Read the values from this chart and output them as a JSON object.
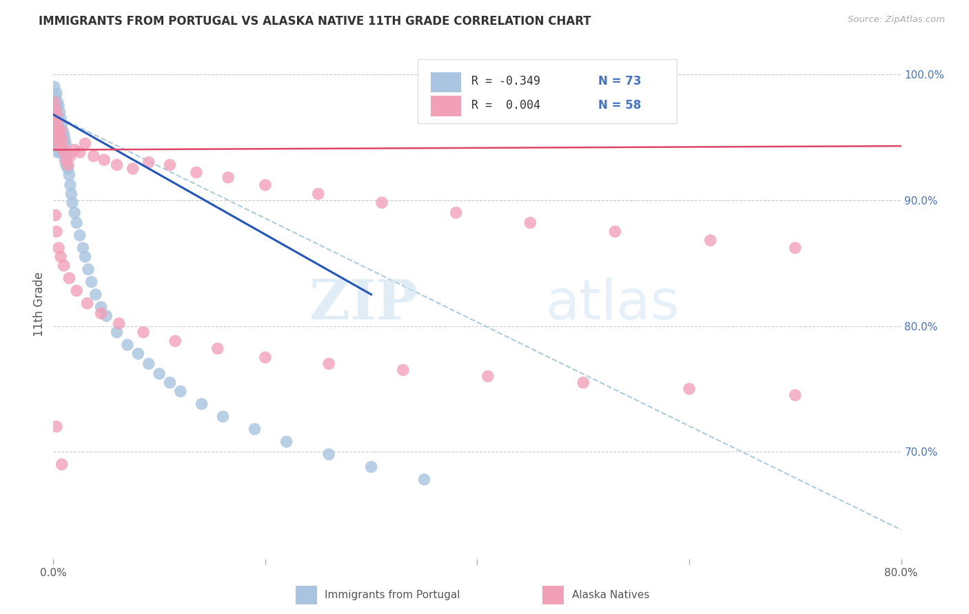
{
  "title": "IMMIGRANTS FROM PORTUGAL VS ALASKA NATIVE 11TH GRADE CORRELATION CHART",
  "source": "Source: ZipAtlas.com",
  "ylabel": "11th Grade",
  "right_yticks": [
    "100.0%",
    "90.0%",
    "80.0%",
    "70.0%"
  ],
  "right_ytick_vals": [
    1.0,
    0.9,
    0.8,
    0.7
  ],
  "watermark_zip": "ZIP",
  "watermark_atlas": "atlas",
  "blue_color": "#a8c4e0",
  "pink_color": "#f2a0b8",
  "blue_line_color": "#2255bb",
  "pink_line_color": "#dd4466",
  "dashed_line_color": "#aaccdd",
  "background_color": "#ffffff",
  "blue_scatter_x": [
    0.001,
    0.001,
    0.001,
    0.002,
    0.002,
    0.002,
    0.003,
    0.003,
    0.003,
    0.003,
    0.004,
    0.004,
    0.004,
    0.004,
    0.005,
    0.005,
    0.005,
    0.006,
    0.006,
    0.006,
    0.007,
    0.007,
    0.007,
    0.008,
    0.008,
    0.009,
    0.009,
    0.01,
    0.01,
    0.011,
    0.011,
    0.012,
    0.012,
    0.013,
    0.014,
    0.015,
    0.016,
    0.017,
    0.018,
    0.02,
    0.022,
    0.025,
    0.028,
    0.03,
    0.033,
    0.036,
    0.04,
    0.045,
    0.05,
    0.06,
    0.07,
    0.08,
    0.09,
    0.1,
    0.11,
    0.12,
    0.14,
    0.16,
    0.19,
    0.22,
    0.26,
    0.3,
    0.35
  ],
  "blue_scatter_y": [
    0.99,
    0.975,
    0.96,
    0.982,
    0.968,
    0.952,
    0.985,
    0.972,
    0.958,
    0.945,
    0.978,
    0.965,
    0.95,
    0.938,
    0.975,
    0.96,
    0.945,
    0.97,
    0.955,
    0.94,
    0.965,
    0.952,
    0.938,
    0.96,
    0.945,
    0.955,
    0.94,
    0.952,
    0.938,
    0.948,
    0.932,
    0.944,
    0.928,
    0.935,
    0.925,
    0.92,
    0.912,
    0.905,
    0.898,
    0.89,
    0.882,
    0.872,
    0.862,
    0.855,
    0.845,
    0.835,
    0.825,
    0.815,
    0.808,
    0.795,
    0.785,
    0.778,
    0.77,
    0.762,
    0.755,
    0.748,
    0.738,
    0.728,
    0.718,
    0.708,
    0.698,
    0.688,
    0.678
  ],
  "pink_scatter_x": [
    0.001,
    0.001,
    0.002,
    0.002,
    0.003,
    0.003,
    0.004,
    0.004,
    0.005,
    0.006,
    0.007,
    0.008,
    0.009,
    0.01,
    0.012,
    0.014,
    0.016,
    0.02,
    0.025,
    0.03,
    0.038,
    0.048,
    0.06,
    0.075,
    0.09,
    0.11,
    0.135,
    0.165,
    0.2,
    0.25,
    0.31,
    0.38,
    0.45,
    0.53,
    0.62,
    0.7,
    0.002,
    0.003,
    0.005,
    0.007,
    0.01,
    0.015,
    0.022,
    0.032,
    0.045,
    0.062,
    0.085,
    0.115,
    0.155,
    0.2,
    0.26,
    0.33,
    0.41,
    0.5,
    0.6,
    0.7,
    0.003,
    0.008
  ],
  "pink_scatter_y": [
    0.978,
    0.962,
    0.972,
    0.955,
    0.968,
    0.95,
    0.962,
    0.945,
    0.955,
    0.948,
    0.955,
    0.948,
    0.942,
    0.938,
    0.932,
    0.928,
    0.935,
    0.94,
    0.938,
    0.945,
    0.935,
    0.932,
    0.928,
    0.925,
    0.93,
    0.928,
    0.922,
    0.918,
    0.912,
    0.905,
    0.898,
    0.89,
    0.882,
    0.875,
    0.868,
    0.862,
    0.888,
    0.875,
    0.862,
    0.855,
    0.848,
    0.838,
    0.828,
    0.818,
    0.81,
    0.802,
    0.795,
    0.788,
    0.782,
    0.775,
    0.77,
    0.765,
    0.76,
    0.755,
    0.75,
    0.745,
    0.72,
    0.69
  ],
  "xlim": [
    0.0,
    0.8
  ],
  "ylim": [
    0.615,
    1.02
  ],
  "blue_trend_x": [
    0.0,
    0.3
  ],
  "blue_trend_y": [
    0.968,
    0.825
  ],
  "pink_trend_x": [
    0.0,
    0.8
  ],
  "pink_trend_y": [
    0.94,
    0.943
  ],
  "dashed_trend_x": [
    0.0,
    0.8
  ],
  "dashed_trend_y": [
    0.968,
    0.638
  ]
}
